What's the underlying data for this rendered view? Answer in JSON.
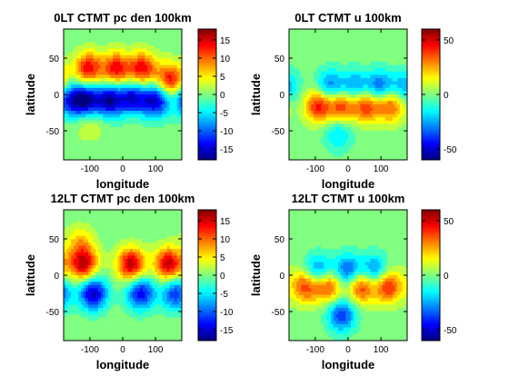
{
  "chart_data": [
    {
      "type": "heatmap",
      "title": "0LT CTMT pc den 100km",
      "xlabel": "longitude",
      "ylabel": "latitude",
      "xlim": [
        -180,
        180
      ],
      "ylim": [
        -90,
        90
      ],
      "xticks": [
        -100,
        0,
        100
      ],
      "yticks": [
        50,
        0,
        -50
      ],
      "colorbar": {
        "range": [
          -18,
          18
        ],
        "ticks": [
          15,
          10,
          5,
          0,
          -5,
          -10,
          -15
        ]
      },
      "features": [
        {
          "lon": -105,
          "lat": 35,
          "value": 14
        },
        {
          "lon": -20,
          "lat": 35,
          "value": 14
        },
        {
          "lon": 60,
          "lat": 35,
          "value": 14
        },
        {
          "lon": 145,
          "lat": 20,
          "value": 14
        },
        {
          "lon": -160,
          "lat": -8,
          "value": -12
        },
        {
          "lon": -110,
          "lat": -8,
          "value": -16
        },
        {
          "lon": -40,
          "lat": -8,
          "value": -16
        },
        {
          "lon": 30,
          "lat": -5,
          "value": -14
        },
        {
          "lon": 100,
          "lat": -8,
          "value": -16
        },
        {
          "lon": -100,
          "lat": -40,
          "value": 4
        }
      ]
    },
    {
      "type": "heatmap",
      "title": "0LT CTMT u 100km",
      "xlabel": "longitude",
      "ylabel": "latitude",
      "xlim": [
        -180,
        180
      ],
      "ylim": [
        -90,
        90
      ],
      "xticks": [
        -100,
        0,
        100
      ],
      "yticks": [
        50,
        0,
        -50
      ],
      "colorbar": {
        "range": [
          -60,
          60
        ],
        "ticks": [
          50,
          0,
          -50
        ]
      },
      "features": [
        {
          "lon": -90,
          "lat": -15,
          "value": 45
        },
        {
          "lon": -20,
          "lat": -15,
          "value": 40
        },
        {
          "lon": 55,
          "lat": -15,
          "value": 42
        },
        {
          "lon": 130,
          "lat": -15,
          "value": 38
        },
        {
          "lon": -55,
          "lat": 10,
          "value": -35
        },
        {
          "lon": 20,
          "lat": 10,
          "value": -30
        },
        {
          "lon": 95,
          "lat": 10,
          "value": -35
        },
        {
          "lon": 170,
          "lat": 10,
          "value": -25
        },
        {
          "lon": -30,
          "lat": -55,
          "value": -20
        }
      ]
    },
    {
      "type": "heatmap",
      "title": "12LT CTMT pc den 100km",
      "xlabel": "longitude",
      "ylabel": "latitude",
      "xlim": [
        -180,
        180
      ],
      "ylim": [
        -90,
        90
      ],
      "xticks": [
        -100,
        0,
        100
      ],
      "yticks": [
        50,
        0,
        -50
      ],
      "colorbar": {
        "range": [
          -18,
          18
        ],
        "ticks": [
          15,
          10,
          5,
          0,
          -5,
          -10,
          -15
        ]
      },
      "features": [
        {
          "lon": -120,
          "lat": 15,
          "value": 16
        },
        {
          "lon": 25,
          "lat": 15,
          "value": 16
        },
        {
          "lon": 140,
          "lat": 15,
          "value": 16
        },
        {
          "lon": -90,
          "lat": -25,
          "value": -16
        },
        {
          "lon": 55,
          "lat": -25,
          "value": -14
        },
        {
          "lon": 160,
          "lat": -25,
          "value": -12
        },
        {
          "lon": -130,
          "lat": 45,
          "value": 6
        }
      ]
    },
    {
      "type": "heatmap",
      "title": "12LT CTMT u 100km",
      "xlabel": "longitude",
      "ylabel": "latitude",
      "xlim": [
        -180,
        180
      ],
      "ylim": [
        -90,
        90
      ],
      "xticks": [
        -100,
        0,
        100
      ],
      "yticks": [
        50,
        0,
        -50
      ],
      "colorbar": {
        "range": [
          -60,
          60
        ],
        "ticks": [
          50,
          0,
          -50
        ]
      },
      "features": [
        {
          "lon": -130,
          "lat": -15,
          "value": 40
        },
        {
          "lon": -60,
          "lat": -15,
          "value": 42
        },
        {
          "lon": 40,
          "lat": -15,
          "value": 45
        },
        {
          "lon": 120,
          "lat": -15,
          "value": 45
        },
        {
          "lon": -90,
          "lat": 5,
          "value": -35
        },
        {
          "lon": 0,
          "lat": 5,
          "value": -40
        },
        {
          "lon": 80,
          "lat": 5,
          "value": -35
        },
        {
          "lon": -20,
          "lat": -55,
          "value": -40
        }
      ]
    }
  ]
}
